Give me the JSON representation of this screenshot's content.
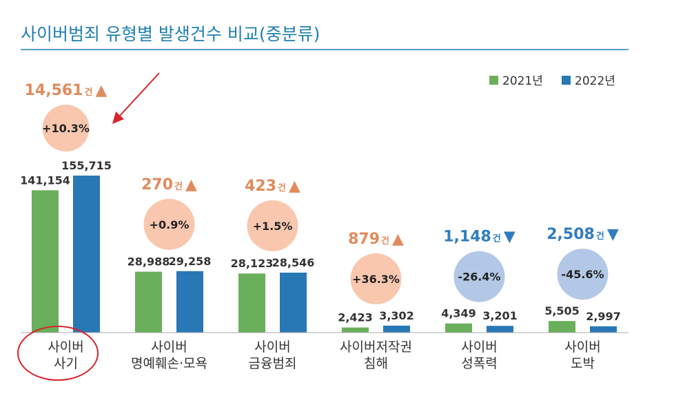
{
  "colors": {
    "title": "#1f7fb2",
    "series_2021": "#6aaf5b",
    "series_2022": "#2878b5",
    "increase_text": "#e08b5e",
    "decrease_text": "#2f7dbf",
    "increase_circle": "#f8c7ae",
    "decrease_circle": "#b3c8e6",
    "highlight_red": "#d9232b"
  },
  "chart_data": {
    "type": "bar",
    "title": "사이버범죄 유형별 발생건수 비교(중분류)",
    "categories": [
      [
        "사이버",
        "사기"
      ],
      [
        "사이버",
        "명예훼손·모욕"
      ],
      [
        "사이버",
        "금융범죄"
      ],
      [
        "사이버저작권",
        "침해"
      ],
      [
        "사이버",
        "성폭력"
      ],
      [
        "사이버",
        "도박"
      ]
    ],
    "series": [
      {
        "name": "2021년",
        "values": [
          141154,
          28988,
          28123,
          2423,
          4349,
          5505
        ],
        "labels": [
          "141,154",
          "28,988",
          "28,123",
          "2,423",
          "4,349",
          "5,505"
        ]
      },
      {
        "name": "2022년",
        "values": [
          155715,
          29258,
          28546,
          3302,
          3201,
          2997
        ],
        "labels": [
          "155,715",
          "29,258",
          "28,546",
          "3,302",
          "3,201",
          "2,997"
        ]
      }
    ],
    "changes": [
      {
        "count": "14,561",
        "unit": "건",
        "arrow": "▲",
        "percent": "+10.3%",
        "direction": "up"
      },
      {
        "count": "270",
        "unit": "건",
        "arrow": "▲",
        "percent": "+0.9%",
        "direction": "up"
      },
      {
        "count": "423",
        "unit": "건",
        "arrow": "▲",
        "percent": "+1.5%",
        "direction": "up"
      },
      {
        "count": "879",
        "unit": "건",
        "arrow": "▲",
        "percent": "+36.3%",
        "direction": "up"
      },
      {
        "count": "1,148",
        "unit": "건",
        "arrow": "▼",
        "percent": "-26.4%",
        "direction": "down"
      },
      {
        "count": "2,508",
        "unit": "건",
        "arrow": "▼",
        "percent": "-45.6%",
        "direction": "down"
      }
    ],
    "legend_position": "top-right",
    "grid": false
  }
}
